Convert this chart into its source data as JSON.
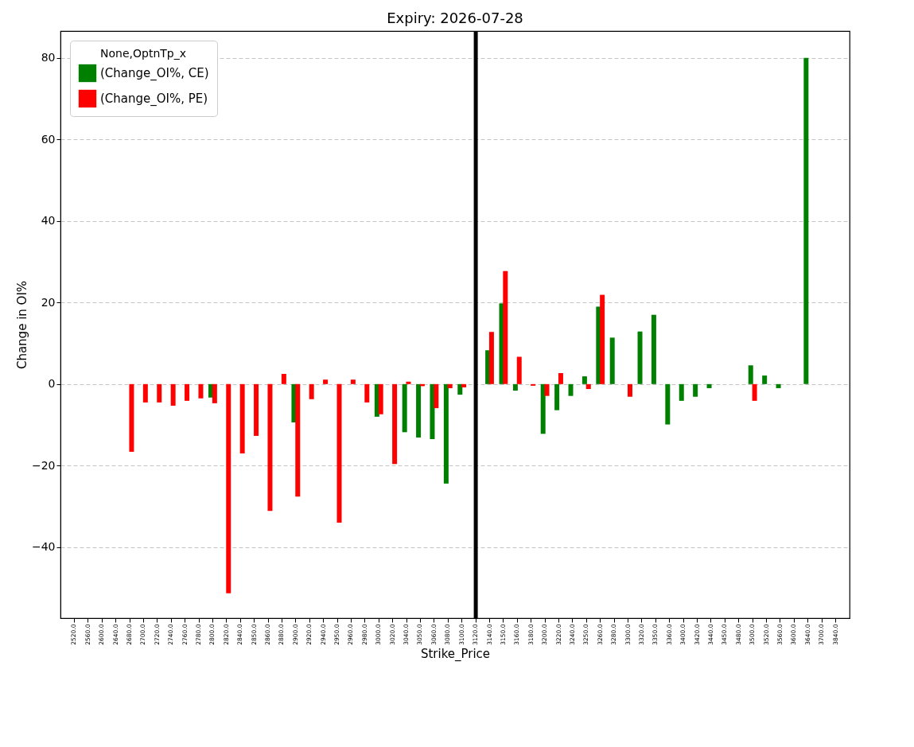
{
  "chart_data": {
    "type": "bar",
    "title": "Expiry: 2026-07-28",
    "xlabel": "Strike_Price",
    "ylabel": "Change in OI%",
    "legend_title": "None,OptnTp_x",
    "categories": [
      "2520.0",
      "2560.0",
      "2600.0",
      "2640.0",
      "2680.0",
      "2700.0",
      "2720.0",
      "2740.0",
      "2760.0",
      "2780.0",
      "2800.0",
      "2820.0",
      "2840.0",
      "2850.0",
      "2860.0",
      "2880.0",
      "2900.0",
      "2920.0",
      "2940.0",
      "2950.0",
      "2960.0",
      "2980.0",
      "3000.0",
      "3020.0",
      "3040.0",
      "3050.0",
      "3060.0",
      "3080.0",
      "3100.0",
      "3120.0",
      "3140.0",
      "3150.0",
      "3160.0",
      "3180.0",
      "3200.0",
      "3220.0",
      "3240.0",
      "3250.0",
      "3260.0",
      "3280.0",
      "3300.0",
      "3320.0",
      "3350.0",
      "3360.0",
      "3400.0",
      "3420.0",
      "3440.0",
      "3450.0",
      "3480.0",
      "3500.0",
      "3520.0",
      "3560.0",
      "3600.0",
      "3640.0",
      "3700.0",
      "3840.0"
    ],
    "series": [
      {
        "name": "(Change_OI%, CE)",
        "color": "#008000",
        "values": [
          null,
          null,
          null,
          null,
          null,
          null,
          null,
          null,
          null,
          null,
          -3.3,
          null,
          null,
          null,
          null,
          null,
          -9.4,
          null,
          null,
          null,
          null,
          null,
          -8.0,
          null,
          -11.8,
          -13.1,
          -13.5,
          -24.4,
          -2.6,
          null,
          8.3,
          19.8,
          -1.6,
          null,
          -12.2,
          -6.4,
          -2.9,
          1.9,
          19.0,
          11.4,
          null,
          12.9,
          17.0,
          -9.9,
          -4.1,
          -3.1,
          -1.0,
          null,
          null,
          4.6,
          2.1,
          -1.0,
          null,
          80,
          null,
          null
        ]
      },
      {
        "name": "(Change_OI%, PE)",
        "color": "#ff0000",
        "values": [
          null,
          null,
          null,
          null,
          -16.6,
          -4.5,
          -4.5,
          -5.3,
          -4.1,
          -3.5,
          -4.7,
          -51.3,
          -17.0,
          -12.7,
          -31.1,
          2.5,
          -27.6,
          -3.7,
          1.1,
          -34.0,
          1.1,
          -4.5,
          -7.4,
          -19.6,
          0.6,
          -0.5,
          -5.9,
          -1.0,
          -0.8,
          null,
          12.8,
          27.7,
          6.7,
          -0.4,
          -2.9,
          2.7,
          null,
          -1.2,
          21.9,
          null,
          -3.1,
          null,
          null,
          null,
          null,
          null,
          null,
          null,
          null,
          -4.1,
          null,
          null,
          null,
          null,
          null,
          null
        ]
      }
    ],
    "ylim": [
      -57.4,
      86.6
    ],
    "yticks": [
      -40,
      -20,
      0,
      20,
      40,
      60,
      80
    ],
    "ref_lines": [
      {
        "axis": "x",
        "value": "3120.0",
        "color": "#000000"
      }
    ],
    "grid": "y",
    "legend": "top left"
  }
}
